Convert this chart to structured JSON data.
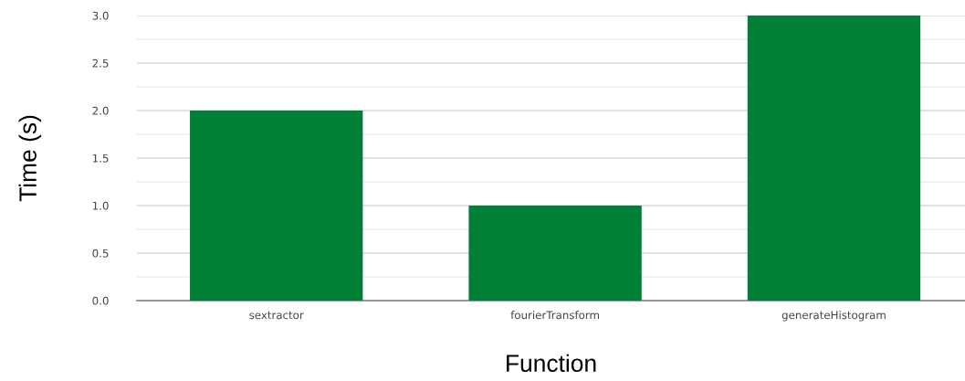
{
  "chart_data": {
    "type": "bar",
    "xlabel": "Function",
    "ylabel": "Time (s)",
    "categories": [
      "sextractor",
      "fourierTransform",
      "generateHistogram"
    ],
    "values": [
      2.0,
      1.0,
      3.0
    ],
    "color": "#007f36",
    "ylim": [
      0,
      3.0
    ],
    "yticks": [
      {
        "value": 0,
        "label": "0.0"
      },
      {
        "value": 0.5,
        "label": "0.5"
      },
      {
        "value": 1.0,
        "label": "1.0"
      },
      {
        "value": 1.5,
        "label": "1.5"
      },
      {
        "value": 2.0,
        "label": "2.0"
      },
      {
        "value": 2.5,
        "label": "2.5"
      },
      {
        "value": 3.0,
        "label": "3.0"
      }
    ],
    "grid": "y"
  }
}
